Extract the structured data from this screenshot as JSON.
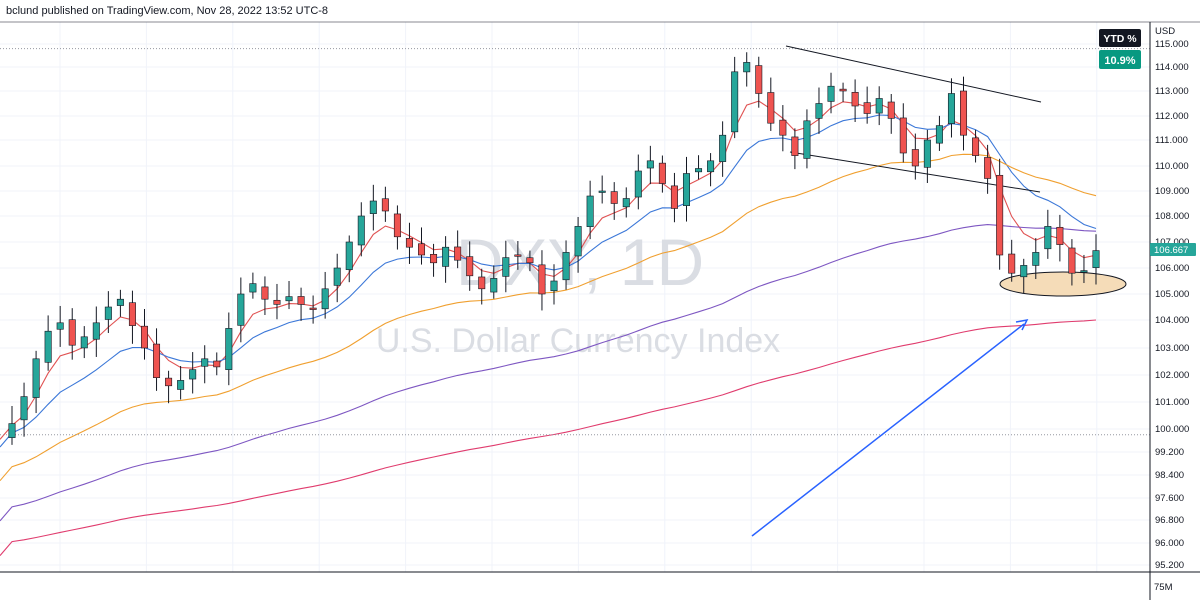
{
  "header": {
    "publish_text": "bclund published on TradingView.com, Nov 28, 2022 13:52 UTC-8"
  },
  "ytd": {
    "label": "YTD %",
    "value": "10.9%",
    "bg_label": "#131722",
    "bg_value": "#089981"
  },
  "watermark": {
    "symbol": "DXY, 1D",
    "name": "U.S. Dollar Currency Index"
  },
  "price_tag": {
    "value": "106.667",
    "color": "#26a69a"
  },
  "volume_label": "75M",
  "colors": {
    "up": "#26a69a",
    "down": "#ef5350",
    "arrow": "#2962ff",
    "ellipse": "#f5d7a8"
  },
  "chart_data": {
    "type": "candlestick",
    "currency": "USD",
    "yticks": [
      "115.000",
      "114.000",
      "113.000",
      "112.000",
      "111.000",
      "110.000",
      "109.000",
      "108.000",
      "107.000",
      "106.000",
      "105.000",
      "104.000",
      "103.000",
      "102.000",
      "101.000",
      "100.000",
      "99.200",
      "98.400",
      "97.600",
      "96.800",
      "96.000",
      "95.200"
    ],
    "ytick_values": [
      115,
      114,
      113,
      112,
      111,
      110,
      109,
      108,
      107,
      106,
      105,
      104,
      103,
      102,
      101,
      100,
      99.2,
      98.4,
      97.6,
      96.8,
      96.0,
      95.2
    ],
    "close_path": [
      100.2,
      101.2,
      102.6,
      103.6,
      103.9,
      103.1,
      103.4,
      103.9,
      104.5,
      104.8,
      103.8,
      103.0,
      101.9,
      101.6,
      101.8,
      102.2,
      102.6,
      102.3,
      103.7,
      105.0,
      105.4,
      104.8,
      104.6,
      104.9,
      104.6,
      104.4,
      105.2,
      106.0,
      107.0,
      108.0,
      108.6,
      108.2,
      107.2,
      106.8,
      106.5,
      106.2,
      106.8,
      106.3,
      105.7,
      105.2,
      105.6,
      106.4,
      106.5,
      106.2,
      105.0,
      105.5,
      106.6,
      107.6,
      108.8,
      109.0,
      108.5,
      108.7,
      109.8,
      110.2,
      109.3,
      108.3,
      109.7,
      109.9,
      110.2,
      111.2,
      113.8,
      114.2,
      112.9,
      111.7,
      111.2,
      110.4,
      111.8,
      112.5,
      113.2,
      113.0,
      112.4,
      112.1,
      112.7,
      111.9,
      110.5,
      110.0,
      111.0,
      111.6,
      112.9,
      111.2,
      110.4,
      109.5,
      106.5,
      105.8,
      106.1,
      106.6,
      107.6,
      106.9,
      105.8,
      105.9,
      106.67
    ],
    "ema_lines": [
      {
        "color": "#e05252",
        "start": 100.1,
        "smoothing": 0.35
      },
      {
        "color": "#3c78d8",
        "start": 99.8,
        "smoothing": 0.15
      },
      {
        "color": "#f0a030",
        "start": 98.6,
        "smoothing": 0.055
      },
      {
        "color": "#7e57c2",
        "start": 97.2,
        "smoothing": 0.025
      },
      {
        "color": "#e03c6e",
        "start": 96.0,
        "smoothing": 0.012
      }
    ],
    "dotted_lines": [
      114.8,
      99.8
    ],
    "ylim": [
      95.0,
      115.6
    ]
  }
}
